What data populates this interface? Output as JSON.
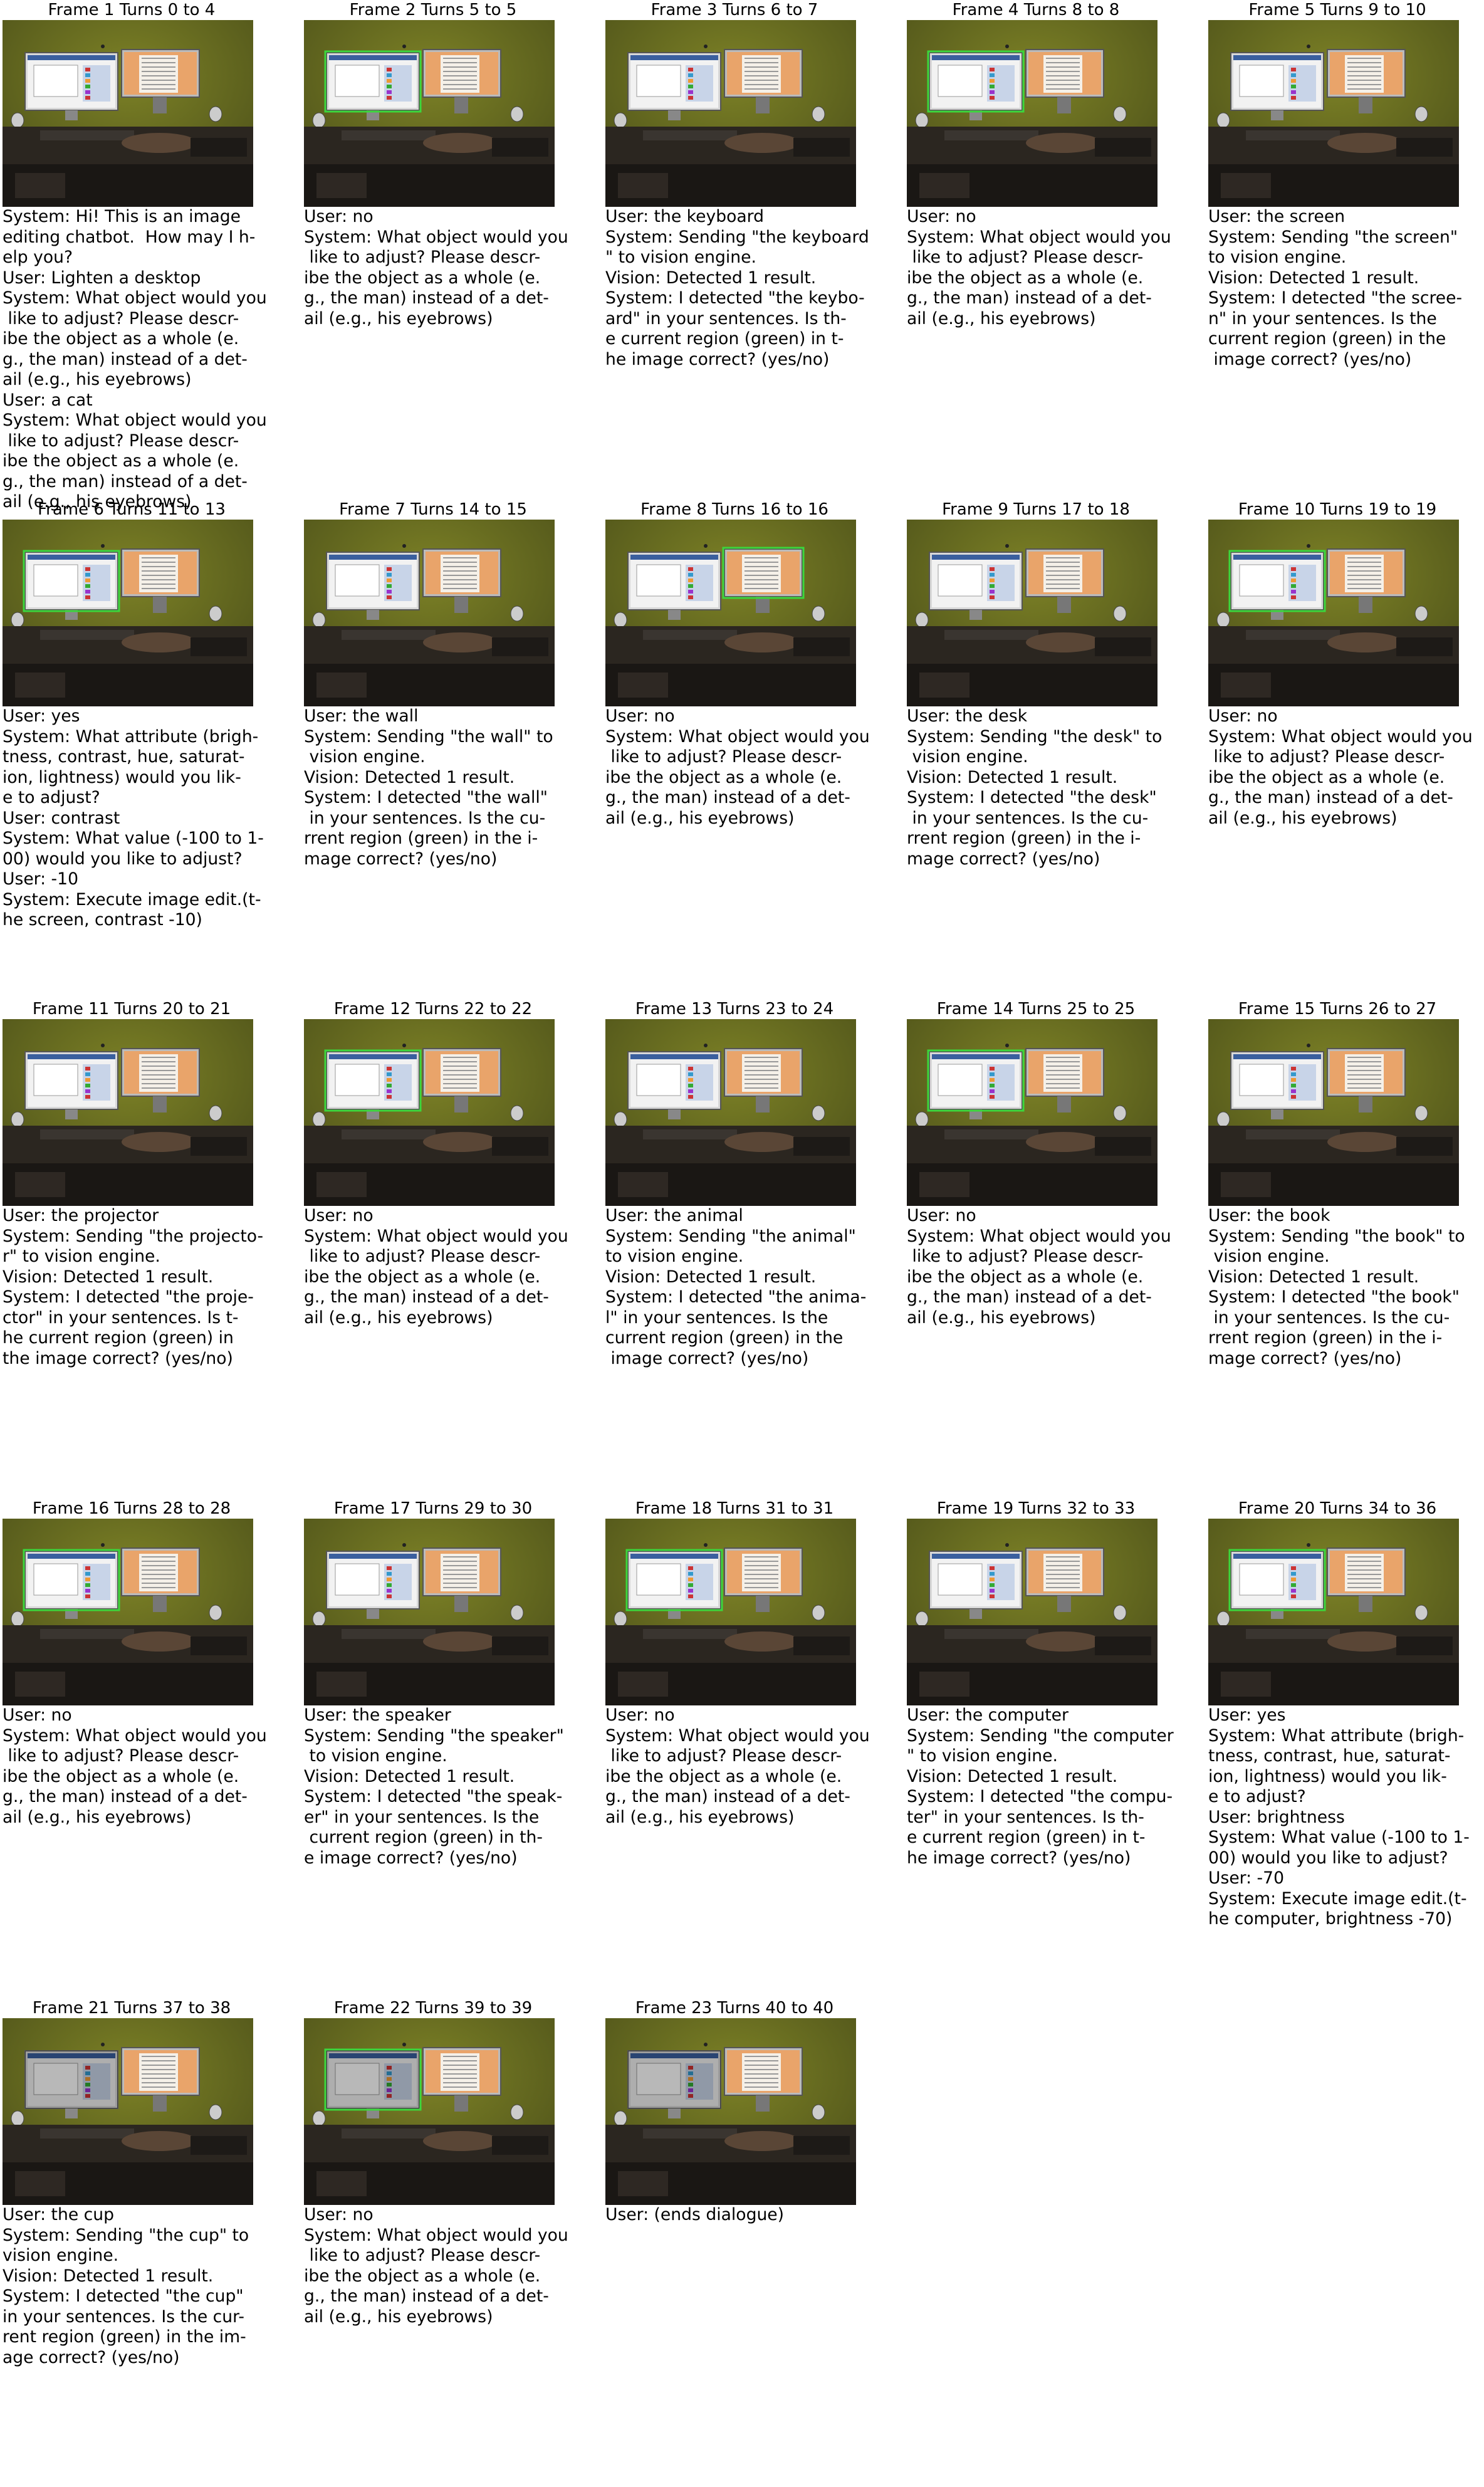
{
  "frames": [
    {
      "title": "Frame 1 Turns 0 to 4",
      "highlight": null,
      "dim": false,
      "lines": [
        "System: Hi! This is an image",
        "editing chatbot.  How may I h-",
        "elp you?",
        "User: Lighten a desktop",
        "System: What object would you",
        " like to adjust? Please descr-",
        "ibe the object as a whole (e.",
        "g., the man) instead of a det-",
        "ail (e.g., his eyebrows)",
        "User: a cat",
        "System: What object would you",
        " like to adjust? Please descr-",
        "ibe the object as a whole (e.",
        "g., the man) instead of a det-",
        "ail (e.g., his eyebrows)"
      ]
    },
    {
      "title": "Frame 2 Turns 5 to 5",
      "highlight": "left-monitor",
      "dim": false,
      "lines": [
        "User: no",
        "System: What object would you",
        " like to adjust? Please descr-",
        "ibe the object as a whole (e.",
        "g., the man) instead of a det-",
        "ail (e.g., his eyebrows)"
      ]
    },
    {
      "title": "Frame 3 Turns 6 to 7",
      "highlight": null,
      "dim": false,
      "lines": [
        "User: the keyboard",
        "System: Sending \"the keyboard",
        "\" to vision engine.",
        "Vision: Detected 1 result.",
        "System: I detected \"the keybo-",
        "ard\" in your sentences. Is th-",
        "e current region (green) in t-",
        "he image correct? (yes/no)"
      ]
    },
    {
      "title": "Frame 4 Turns 8 to 8",
      "highlight": "left-monitor",
      "dim": false,
      "lines": [
        "User: no",
        "System: What object would you",
        " like to adjust? Please descr-",
        "ibe the object as a whole (e.",
        "g., the man) instead of a det-",
        "ail (e.g., his eyebrows)"
      ]
    },
    {
      "title": "Frame 5 Turns 9 to 10",
      "highlight": null,
      "dim": false,
      "lines": [
        "User: the screen",
        "System: Sending \"the screen\"",
        "to vision engine.",
        "Vision: Detected 1 result.",
        "System: I detected \"the scree-",
        "n\" in your sentences. Is the",
        "current region (green) in the",
        " image correct? (yes/no)"
      ]
    },
    {
      "title": "Frame 6 Turns 11 to 13",
      "highlight": "left-monitor",
      "dim": false,
      "lines": [
        "User: yes",
        "System: What attribute (brigh-",
        "tness, contrast, hue, saturat-",
        "ion, lightness) would you lik-",
        "e to adjust?",
        "User: contrast",
        "System: What value (-100 to 1-",
        "00) would you like to adjust?",
        "User: -10",
        "System: Execute image edit.(t-",
        "he screen, contrast -10)"
      ]
    },
    {
      "title": "Frame 7 Turns 14 to 15",
      "highlight": null,
      "dim": false,
      "lines": [
        "User: the wall",
        "System: Sending \"the wall\" to",
        " vision engine.",
        "Vision: Detected 1 result.",
        "System: I detected \"the wall\"",
        " in your sentences. Is the cu-",
        "rrent region (green) in the i-",
        "mage correct? (yes/no)"
      ]
    },
    {
      "title": "Frame 8 Turns 16 to 16",
      "highlight": "right-monitor",
      "dim": false,
      "lines": [
        "User: no",
        "System: What object would you",
        " like to adjust? Please descr-",
        "ibe the object as a whole (e.",
        "g., the man) instead of a det-",
        "ail (e.g., his eyebrows)"
      ]
    },
    {
      "title": "Frame 9 Turns 17 to 18",
      "highlight": null,
      "dim": false,
      "lines": [
        "User: the desk",
        "System: Sending \"the desk\" to",
        " vision engine.",
        "Vision: Detected 1 result.",
        "System: I detected \"the desk\"",
        " in your sentences. Is the cu-",
        "rrent region (green) in the i-",
        "mage correct? (yes/no)"
      ]
    },
    {
      "title": "Frame 10 Turns 19 to 19",
      "highlight": "left-monitor",
      "dim": false,
      "lines": [
        "User: no",
        "System: What object would you",
        " like to adjust? Please descr-",
        "ibe the object as a whole (e.",
        "g., the man) instead of a det-",
        "ail (e.g., his eyebrows)"
      ]
    },
    {
      "title": "Frame 11 Turns 20 to 21",
      "highlight": null,
      "dim": false,
      "lines": [
        "User: the projector",
        "System: Sending \"the projecto-",
        "r\" to vision engine.",
        "Vision: Detected 1 result.",
        "System: I detected \"the proje-",
        "ctor\" in your sentences. Is t-",
        "he current region (green) in",
        "the image correct? (yes/no)"
      ]
    },
    {
      "title": "Frame 12 Turns 22 to 22",
      "highlight": "left-monitor",
      "dim": false,
      "lines": [
        "User: no",
        "System: What object would you",
        " like to adjust? Please descr-",
        "ibe the object as a whole (e.",
        "g., the man) instead of a det-",
        "ail (e.g., his eyebrows)"
      ]
    },
    {
      "title": "Frame 13 Turns 23 to 24",
      "highlight": null,
      "dim": false,
      "lines": [
        "User: the animal",
        "System: Sending \"the animal\"",
        "to vision engine.",
        "Vision: Detected 1 result.",
        "System: I detected \"the anima-",
        "l\" in your sentences. Is the",
        "current region (green) in the",
        " image correct? (yes/no)"
      ]
    },
    {
      "title": "Frame 14 Turns 25 to 25",
      "highlight": "left-monitor",
      "dim": false,
      "lines": [
        "User: no",
        "System: What object would you",
        " like to adjust? Please descr-",
        "ibe the object as a whole (e.",
        "g., the man) instead of a det-",
        "ail (e.g., his eyebrows)"
      ]
    },
    {
      "title": "Frame 15 Turns 26 to 27",
      "highlight": null,
      "dim": false,
      "lines": [
        "User: the book",
        "System: Sending \"the book\" to",
        " vision engine.",
        "Vision: Detected 1 result.",
        "System: I detected \"the book\"",
        " in your sentences. Is the cu-",
        "rrent region (green) in the i-",
        "mage correct? (yes/no)"
      ]
    },
    {
      "title": "Frame 16 Turns 28 to 28",
      "highlight": "left-monitor",
      "dim": false,
      "lines": [
        "User: no",
        "System: What object would you",
        " like to adjust? Please descr-",
        "ibe the object as a whole (e.",
        "g., the man) instead of a det-",
        "ail (e.g., his eyebrows)"
      ]
    },
    {
      "title": "Frame 17 Turns 29 to 30",
      "highlight": null,
      "dim": false,
      "lines": [
        "User: the speaker",
        "System: Sending \"the speaker\"",
        " to vision engine.",
        "Vision: Detected 1 result.",
        "System: I detected \"the speak-",
        "er\" in your sentences. Is the",
        " current region (green) in th-",
        "e image correct? (yes/no)"
      ]
    },
    {
      "title": "Frame 18 Turns 31 to 31",
      "highlight": "left-monitor",
      "dim": false,
      "lines": [
        "User: no",
        "System: What object would you",
        " like to adjust? Please descr-",
        "ibe the object as a whole (e.",
        "g., the man) instead of a det-",
        "ail (e.g., his eyebrows)"
      ]
    },
    {
      "title": "Frame 19 Turns 32 to 33",
      "highlight": null,
      "dim": false,
      "lines": [
        "User: the computer",
        "System: Sending \"the computer",
        "\" to vision engine.",
        "Vision: Detected 1 result.",
        "System: I detected \"the compu-",
        "ter\" in your sentences. Is th-",
        "e current region (green) in t-",
        "he image correct? (yes/no)"
      ]
    },
    {
      "title": "Frame 20 Turns 34 to 36",
      "highlight": "left-monitor",
      "dim": false,
      "lines": [
        "User: yes",
        "System: What attribute (brigh-",
        "tness, contrast, hue, saturat-",
        "ion, lightness) would you lik-",
        "e to adjust?",
        "User: brightness",
        "System: What value (-100 to 1-",
        "00) would you like to adjust?",
        "User: -70",
        "System: Execute image edit.(t-",
        "he computer, brightness -70)"
      ]
    },
    {
      "title": "Frame 21 Turns 37 to 38",
      "highlight": null,
      "dim": true,
      "lines": [
        "User: the cup",
        "System: Sending \"the cup\" to",
        "vision engine.",
        "Vision: Detected 1 result.",
        "System: I detected \"the cup\"",
        "in your sentences. Is the cur-",
        "rent region (green) in the im-",
        "age correct? (yes/no)"
      ]
    },
    {
      "title": "Frame 22 Turns 39 to 39",
      "highlight": "left-monitor",
      "dim": true,
      "lines": [
        "User: no",
        "System: What object would you",
        " like to adjust? Please descr-",
        "ibe the object as a whole (e.",
        "g., the man) instead of a det-",
        "ail (e.g., his eyebrows)"
      ]
    },
    {
      "title": "Frame 23 Turns 40 to 40",
      "highlight": null,
      "dim": true,
      "lines": [
        "User: (ends dialogue)"
      ]
    }
  ],
  "colors": {
    "wall": "#6b6f1f",
    "highlight": "#3cd63c",
    "text": "#000000"
  }
}
